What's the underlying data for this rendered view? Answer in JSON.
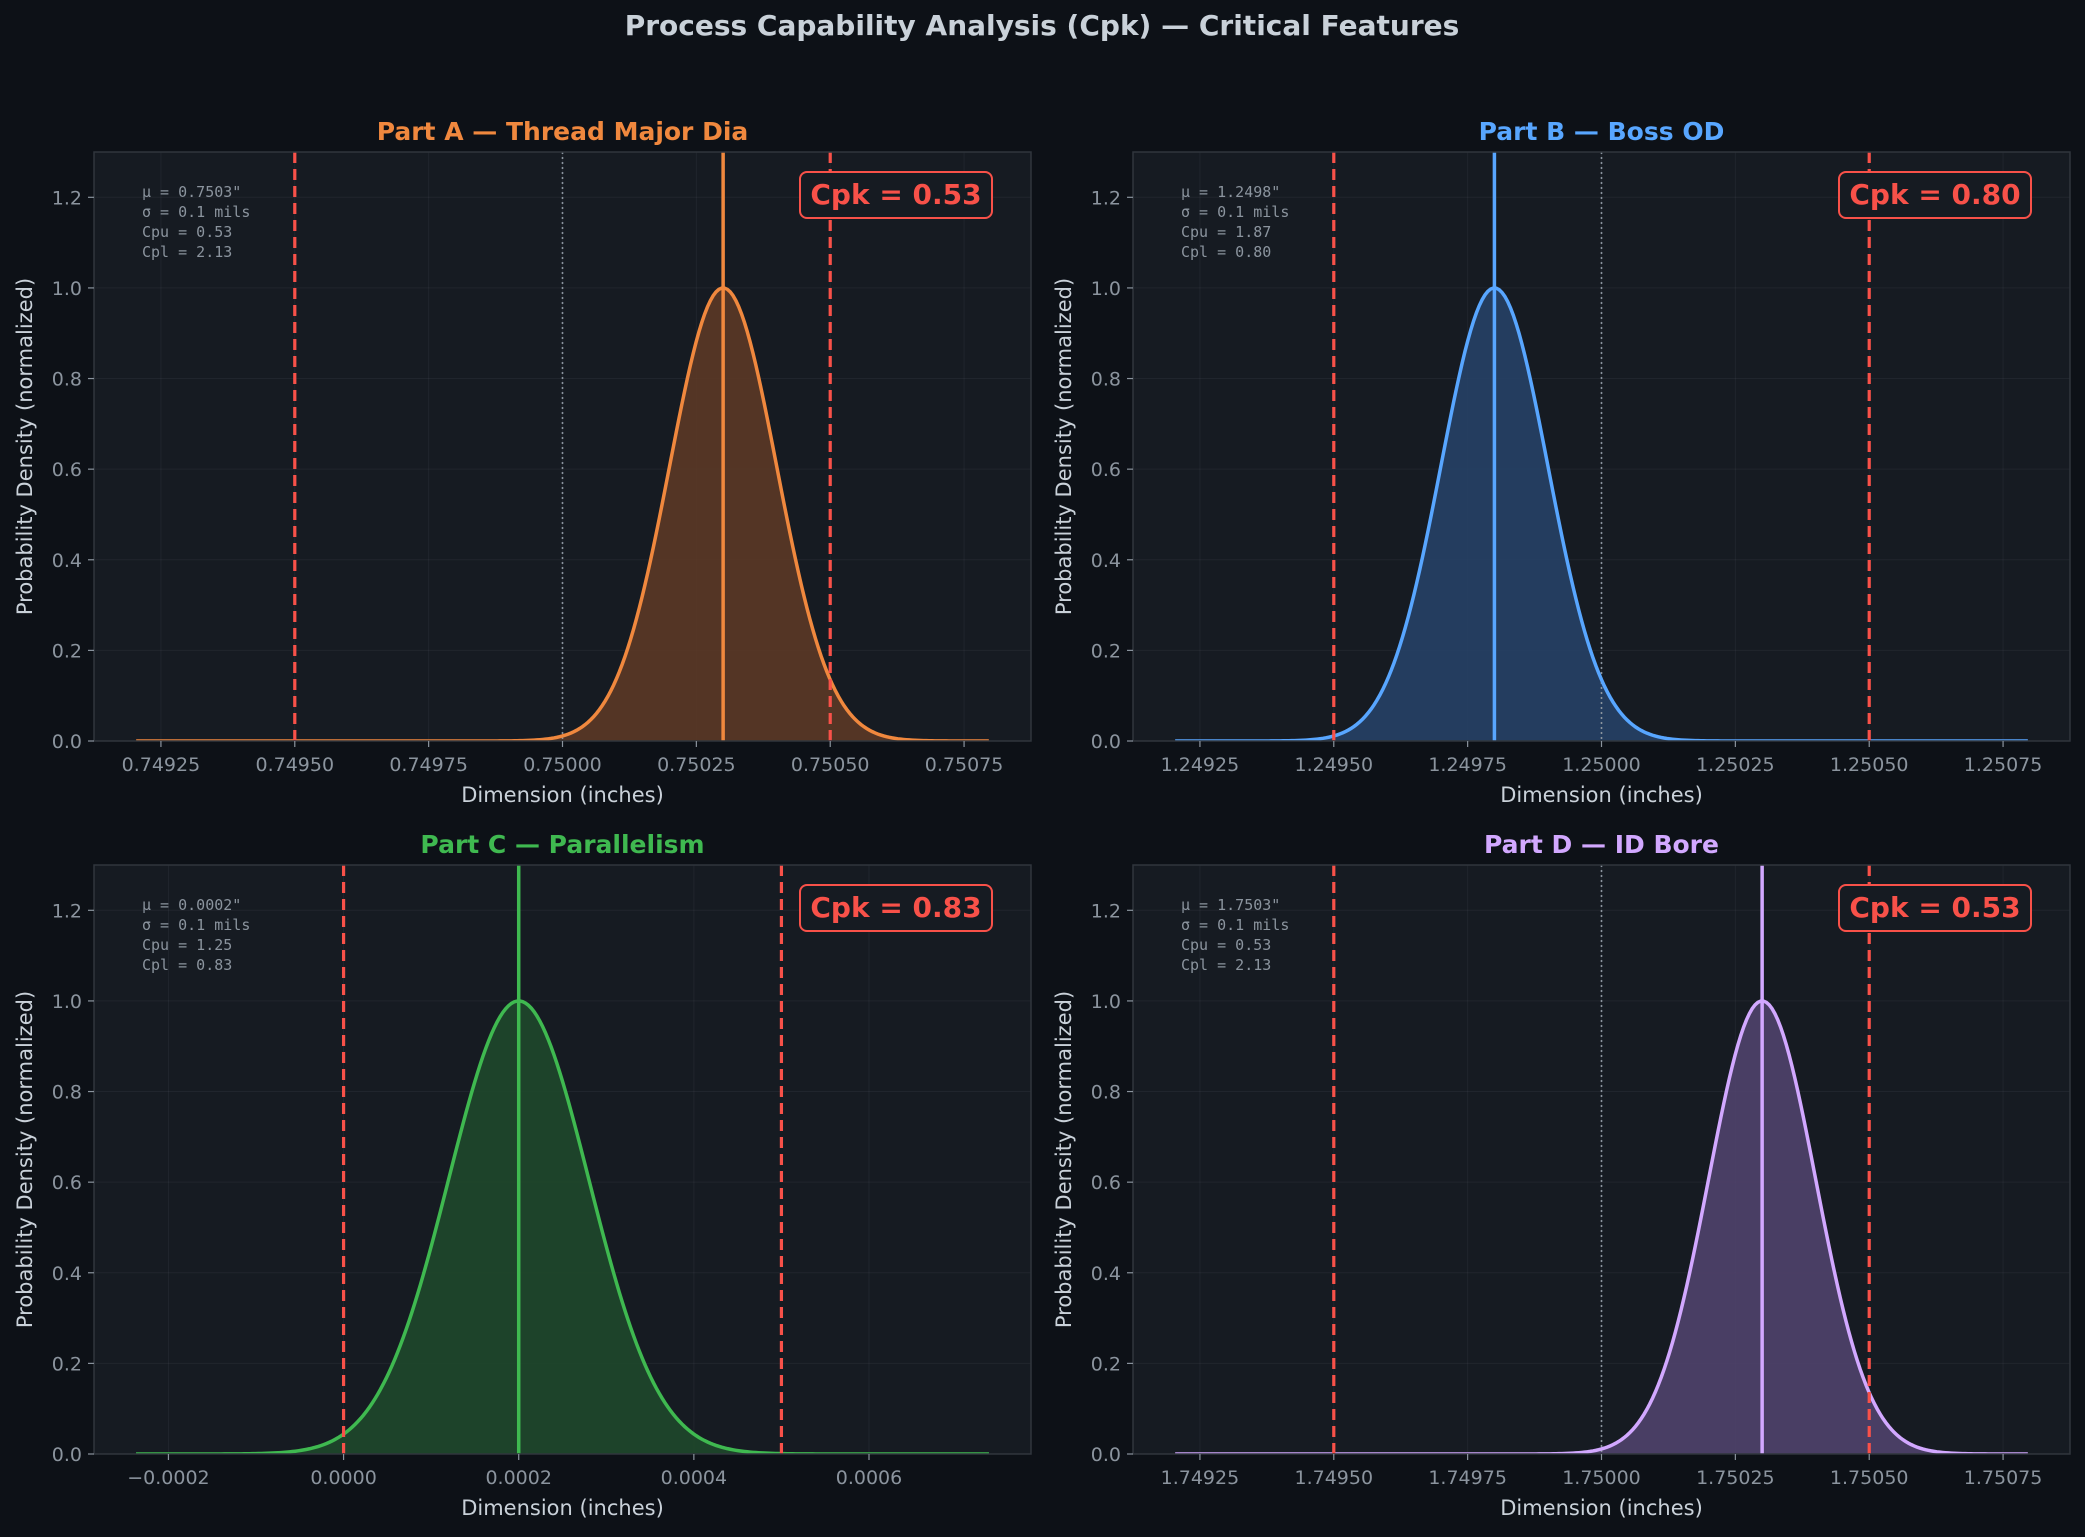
{
  "figure": {
    "title": "Process Capability Analysis (Cpk) — Critical Features",
    "background": "#0d1117",
    "axes_background": "#161b22",
    "text_color": "#c9d1d9",
    "tick_color": "#8b949e",
    "spec_color": "#f85149",
    "nominal_line_color": "#8b949e"
  },
  "chart_data": [
    {
      "type": "area",
      "title": "Part A — Thread Major Dia",
      "color": "#f0883e",
      "fill": "#5f3a26",
      "xlabel": "Dimension (inches)",
      "ylabel": "Probability Density (normalized)",
      "xlim": [
        0.749125,
        0.750875
      ],
      "ylim": [
        0,
        1.3
      ],
      "x_ticks": [
        0.74925,
        0.7495,
        0.74975,
        0.75,
        0.75025,
        0.7505,
        0.75075
      ],
      "x_tick_labels": [
        "0.74925",
        "0.74950",
        "0.74975",
        "0.75000",
        "0.75025",
        "0.75050",
        "0.75075"
      ],
      "y_ticks": [
        0,
        0.2,
        0.4,
        0.6,
        0.8,
        1.0,
        1.2
      ],
      "y_tick_labels": [
        "0.0",
        "0.2",
        "0.4",
        "0.6",
        "0.8",
        "1.0",
        "1.2"
      ],
      "mean": 0.7503,
      "sigma": 0.0001,
      "lsl": 0.7495,
      "usl": 0.7505,
      "nominal": 0.75,
      "stats": [
        "μ = 0.7503\"",
        "σ = 0.1 mils",
        "Cpu = 0.53",
        "Cpl = 2.13"
      ],
      "cpk_label": "Cpk = 0.53",
      "grid": true
    },
    {
      "type": "area",
      "title": "Part B — Boss OD",
      "color": "#58a6ff",
      "fill": "#27436a",
      "xlabel": "Dimension (inches)",
      "ylabel": "Probability Density (normalized)",
      "xlim": [
        1.249125,
        1.250875
      ],
      "ylim": [
        0,
        1.3
      ],
      "x_ticks": [
        1.24925,
        1.2495,
        1.24975,
        1.25,
        1.25025,
        1.2505,
        1.25075
      ],
      "x_tick_labels": [
        "1.24925",
        "1.24950",
        "1.24975",
        "1.25000",
        "1.25025",
        "1.25050",
        "1.25075"
      ],
      "y_ticks": [
        0,
        0.2,
        0.4,
        0.6,
        0.8,
        1.0,
        1.2
      ],
      "y_tick_labels": [
        "0.0",
        "0.2",
        "0.4",
        "0.6",
        "0.8",
        "1.0",
        "1.2"
      ],
      "mean": 1.2498,
      "sigma": 0.0001,
      "lsl": 1.2495,
      "usl": 1.2505,
      "nominal": 1.25,
      "stats": [
        "μ = 1.2498\"",
        "σ = 0.1 mils",
        "Cpu = 1.87",
        "Cpl = 0.80"
      ],
      "cpk_label": "Cpk = 0.80",
      "grid": true
    },
    {
      "type": "area",
      "title": "Part C — Parallelism",
      "color": "#3fb950",
      "fill": "#1f4a2c",
      "xlabel": "Dimension (inches)",
      "ylabel": "Probability Density (normalized)",
      "xlim": [
        -0.000285,
        0.000785
      ],
      "ylim": [
        0,
        1.3
      ],
      "x_ticks": [
        -0.0002,
        0,
        0.0002,
        0.0004,
        0.0006
      ],
      "x_tick_labels": [
        "−0.0002",
        "0.0000",
        "0.0002",
        "0.0004",
        "0.0006"
      ],
      "y_ticks": [
        0,
        0.2,
        0.4,
        0.6,
        0.8,
        1.0,
        1.2
      ],
      "y_tick_labels": [
        "0.0",
        "0.2",
        "0.4",
        "0.6",
        "0.8",
        "1.0",
        "1.2"
      ],
      "mean": 0.0002,
      "sigma": 8e-05,
      "lsl": 0,
      "usl": 0.0005,
      "nominal": null,
      "curve_range": [
        -0.000237,
        0.000737
      ],
      "stats": [
        "μ = 0.0002\"",
        "σ = 0.1 mils",
        "Cpu = 1.25",
        "Cpl = 0.83"
      ],
      "cpk_label": "Cpk = 0.83",
      "grid": true
    },
    {
      "type": "area",
      "title": "Part D — ID Bore",
      "color": "#d2a8ff",
      "fill": "#524470",
      "xlabel": "Dimension (inches)",
      "ylabel": "Probability Density (normalized)",
      "xlim": [
        1.749125,
        1.750875
      ],
      "ylim": [
        0,
        1.3
      ],
      "x_ticks": [
        1.74925,
        1.7495,
        1.74975,
        1.75,
        1.75025,
        1.7505,
        1.75075
      ],
      "x_tick_labels": [
        "1.74925",
        "1.74950",
        "1.74975",
        "1.75000",
        "1.75025",
        "1.75050",
        "1.75075"
      ],
      "y_ticks": [
        0,
        0.2,
        0.4,
        0.6,
        0.8,
        1.0,
        1.2
      ],
      "y_tick_labels": [
        "0.0",
        "0.2",
        "0.4",
        "0.6",
        "0.8",
        "1.0",
        "1.2"
      ],
      "mean": 1.7503,
      "sigma": 0.0001,
      "lsl": 1.7495,
      "usl": 1.7505,
      "nominal": 1.75,
      "stats": [
        "μ = 1.7503\"",
        "σ = 0.1 mils",
        "Cpu = 0.53",
        "Cpl = 2.13"
      ],
      "cpk_label": "Cpk = 0.53",
      "grid": true
    }
  ]
}
